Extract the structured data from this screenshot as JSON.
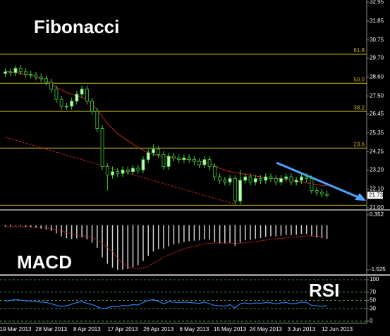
{
  "chart_data": [
    {
      "type": "candlestick",
      "title": "Fibonacci",
      "categories": [
        null,
        null,
        "19 Mar 2013",
        null,
        null,
        null,
        null,
        null,
        null,
        "28 Mar 2013",
        null,
        null,
        null,
        null,
        null,
        null,
        "8 Apr 2013",
        null,
        null,
        null,
        null,
        null,
        null,
        "17 Apr 2013",
        null,
        null,
        null,
        null,
        null,
        null,
        "26 Apr 2013",
        null,
        null,
        null,
        null,
        null,
        null,
        "6 May 2013",
        null,
        null,
        null,
        null,
        null,
        null,
        "15 May 2013",
        null,
        null,
        null,
        null,
        null,
        null,
        "24 May 2013",
        null,
        null,
        null,
        null,
        null,
        null,
        "3 Jun 2013",
        null,
        null,
        null,
        null,
        null,
        null,
        "12 Jun 2013"
      ],
      "open": [
        28.8,
        28.9,
        28.85,
        29.1,
        28.9,
        28.75,
        28.7,
        28.6,
        28.5,
        28.3,
        27.9,
        27.3,
        26.9,
        26.9,
        27.2,
        27.6,
        27.9,
        27.2,
        26.6,
        25.6,
        23.4,
        22.9,
        23.1,
        23.0,
        23.2,
        23.1,
        23.3,
        23.2,
        23.8,
        24.2,
        24.4,
        24.1,
        23.4,
        24.0,
        23.9,
        23.8,
        23.9,
        23.8,
        23.7,
        23.5,
        23.8,
        23.4,
        22.8,
        22.6,
        22.5,
        22.7,
        21.4,
        22.6,
        22.8,
        22.5,
        22.7,
        22.6,
        22.8,
        22.7,
        22.5,
        22.7,
        22.8,
        22.5,
        22.6,
        22.8,
        22.7,
        22.0,
        21.9,
        21.8,
        null,
        null
      ],
      "high": [
        29.1,
        29.1,
        29.3,
        29.3,
        29.1,
        28.95,
        28.9,
        28.8,
        28.7,
        28.5,
        28.1,
        27.5,
        27.1,
        27.4,
        27.8,
        28.1,
        28.1,
        27.4,
        26.8,
        25.8,
        23.6,
        23.4,
        23.3,
        23.4,
        23.4,
        23.5,
        23.5,
        24.0,
        24.4,
        24.7,
        24.6,
        24.3,
        24.2,
        24.2,
        24.1,
        24.1,
        24.1,
        24.0,
        23.9,
        24.0,
        24.0,
        23.6,
        23.0,
        22.8,
        22.9,
        22.9,
        23.2,
        23.0,
        23.0,
        22.9,
        22.9,
        23.0,
        23.0,
        22.9,
        22.9,
        23.0,
        23.0,
        22.8,
        23.0,
        23.0,
        22.9,
        22.2,
        22.1,
        22.0,
        null,
        null
      ],
      "low": [
        28.6,
        28.65,
        28.65,
        28.7,
        28.55,
        28.5,
        28.4,
        28.3,
        28.1,
        27.7,
        27.1,
        26.7,
        26.7,
        26.7,
        27.0,
        27.4,
        27.0,
        26.4,
        25.4,
        23.2,
        22.0,
        22.7,
        22.8,
        22.8,
        22.9,
        22.9,
        23.0,
        23.0,
        23.6,
        24.0,
        23.9,
        23.2,
        23.2,
        23.7,
        23.6,
        23.6,
        23.6,
        23.5,
        23.3,
        23.3,
        23.2,
        22.6,
        22.4,
        22.3,
        22.3,
        21.2,
        21.2,
        22.4,
        22.3,
        22.3,
        22.4,
        22.4,
        22.5,
        22.3,
        22.3,
        22.5,
        22.3,
        22.3,
        22.4,
        22.5,
        21.8,
        21.7,
        21.6,
        21.6,
        null,
        null
      ],
      "close": [
        28.9,
        28.85,
        29.1,
        28.9,
        28.75,
        28.7,
        28.6,
        28.5,
        28.3,
        27.9,
        27.3,
        26.9,
        26.9,
        27.2,
        27.6,
        27.9,
        27.2,
        26.6,
        25.6,
        23.4,
        22.9,
        23.1,
        23.0,
        23.2,
        23.1,
        23.3,
        23.2,
        23.8,
        24.2,
        24.4,
        24.1,
        23.4,
        24.0,
        23.9,
        23.8,
        23.9,
        23.8,
        23.7,
        23.5,
        23.8,
        23.4,
        22.8,
        22.6,
        22.5,
        22.7,
        21.4,
        22.6,
        22.8,
        22.5,
        22.7,
        22.6,
        22.8,
        22.7,
        22.5,
        22.7,
        22.8,
        22.5,
        22.6,
        22.8,
        22.7,
        22.0,
        21.9,
        21.8,
        21.73,
        null,
        null
      ],
      "color": "#3fd23f",
      "up_fill": "#c8f5bc",
      "down_fill": "#000000",
      "lines": [
        {
          "color": "#c8261a",
          "dashed": false,
          "values": [
            28.95,
            28.9,
            28.85,
            28.8,
            28.75,
            28.7,
            28.6,
            28.5,
            28.4,
            28.2,
            28.0,
            27.85,
            27.7,
            27.6,
            27.5,
            27.4,
            27.3,
            27.0,
            26.7,
            26.3,
            25.9,
            25.6,
            25.3,
            25.1,
            24.9,
            24.7,
            24.5,
            24.35,
            24.2,
            24.1,
            24.05,
            24.0,
            23.95,
            23.9,
            23.85,
            23.8,
            23.8,
            23.75,
            23.7,
            23.65,
            23.6,
            23.45,
            23.3,
            23.2,
            23.1,
            23.05,
            23.0,
            22.95,
            22.9,
            22.85,
            22.8,
            22.75,
            22.7,
            22.7,
            22.65,
            22.65,
            22.6,
            22.55,
            22.5,
            22.45,
            22.4,
            22.35,
            22.3,
            22.3,
            null,
            null
          ]
        },
        {
          "color": "#c8261a",
          "dashed": true,
          "values": [
            25.1,
            25.01,
            24.93,
            24.84,
            24.75,
            24.67,
            24.58,
            24.49,
            24.41,
            24.32,
            24.23,
            24.15,
            24.06,
            23.97,
            23.89,
            23.8,
            23.71,
            23.63,
            23.54,
            23.45,
            23.37,
            23.28,
            23.19,
            23.11,
            23.02,
            22.93,
            22.85,
            22.76,
            22.67,
            22.59,
            22.5,
            22.41,
            22.33,
            22.24,
            22.15,
            22.07,
            21.98,
            21.89,
            21.81,
            21.72,
            21.63,
            21.55,
            21.46,
            21.37,
            21.29,
            21.2,
            null,
            null,
            null,
            null,
            null,
            null,
            null,
            null,
            null,
            null,
            null,
            null,
            null,
            null,
            null,
            null,
            null,
            null,
            null,
            null
          ]
        }
      ],
      "fib": {
        "color": "#c8b41e",
        "values": [
          29.92,
          28.23,
          26.6,
          24.47,
          21.15
        ],
        "labels": [
          "61.8",
          "50.0",
          "38.2",
          "23.6",
          null
        ]
      },
      "ylim": [
        20.92,
        33.07
      ],
      "yticks": [
        32.95,
        31.85,
        30.75,
        {
          "value": 29.7,
          "label": "29.70"
        },
        {
          "value": 28.6,
          "label": "28.60"
        },
        {
          "value": 27.5,
          "label": "27.50"
        },
        26.45,
        25.35,
        24.25,
        {
          "value": 23.2,
          "label": "23.20"
        },
        {
          "value": 22.1,
          "label": "22.10"
        },
        {
          "value": 21.0,
          "label": "21.00"
        }
      ]
    },
    {
      "type": "macd",
      "title": "MACD",
      "values": [
        -0.05,
        -0.05,
        -0.02,
        -0.03,
        -0.06,
        -0.08,
        -0.1,
        -0.12,
        -0.15,
        -0.2,
        -0.28,
        -0.38,
        -0.45,
        -0.47,
        -0.45,
        -0.42,
        -0.48,
        -0.6,
        -0.78,
        -1.1,
        -1.32,
        -1.45,
        -1.52,
        -1.52,
        -1.5,
        -1.44,
        -1.36,
        -1.22,
        -1.05,
        -0.9,
        -0.82,
        -0.8,
        -0.72,
        -0.66,
        -0.62,
        -0.58,
        -0.55,
        -0.53,
        -0.52,
        -0.48,
        -0.5,
        -0.58,
        -0.62,
        -0.63,
        -0.6,
        -0.7,
        -0.6,
        -0.52,
        -0.5,
        -0.46,
        -0.44,
        -0.4,
        -0.38,
        -0.38,
        -0.36,
        -0.33,
        -0.34,
        -0.33,
        -0.3,
        -0.3,
        -0.38,
        -0.42,
        -0.45,
        -0.47,
        null,
        null
      ],
      "color": "#d0d0d0",
      "signal": {
        "color": "#c8261a",
        "values": [
          -0.05,
          -0.05,
          -0.05,
          -0.05,
          -0.05,
          -0.06,
          -0.07,
          -0.08,
          -0.1,
          -0.12,
          -0.15,
          -0.2,
          -0.25,
          -0.3,
          -0.33,
          -0.36,
          -0.38,
          -0.42,
          -0.5,
          -0.62,
          -0.76,
          -0.9,
          -1.15,
          -1.3,
          -1.42,
          -1.48,
          -1.5,
          -1.47,
          -1.4,
          -1.3,
          -1.2,
          -1.1,
          -1.02,
          -0.95,
          -0.88,
          -0.81,
          -0.76,
          -0.72,
          -0.68,
          -0.64,
          -0.62,
          -0.61,
          -0.61,
          -0.61,
          -0.61,
          -0.63,
          -0.62,
          -0.6,
          -0.58,
          -0.56,
          -0.54,
          -0.51,
          -0.49,
          -0.47,
          -0.45,
          -0.43,
          -0.41,
          -0.4,
          -0.38,
          -0.37,
          -0.37,
          -0.38,
          -0.39,
          -0.4,
          null,
          null
        ]
      },
      "ylim": [
        -1.669,
        0.496
      ],
      "yticks": [
        0.352,
        -1.525
      ]
    },
    {
      "type": "line",
      "title": "RSI",
      "values": [
        48,
        50,
        52,
        51,
        49,
        48,
        47,
        46,
        45,
        42,
        38,
        36,
        37,
        41,
        45,
        47,
        43,
        40,
        35,
        30,
        32,
        36,
        35,
        38,
        37,
        40,
        39,
        45,
        50,
        52,
        48,
        42,
        47,
        46,
        45,
        46,
        45,
        44,
        43,
        46,
        42,
        38,
        37,
        36,
        40,
        32,
        42,
        44,
        42,
        44,
        43,
        45,
        44,
        42,
        44,
        45,
        42,
        43,
        46,
        45,
        38,
        37,
        36,
        38,
        null,
        null
      ],
      "color": "#2f7ff0",
      "grid_color": "#4f8f4f",
      "ylim": [
        -5.2,
        108.6
      ],
      "yticks": [
        100,
        70,
        50,
        30,
        0
      ]
    }
  ]
}
